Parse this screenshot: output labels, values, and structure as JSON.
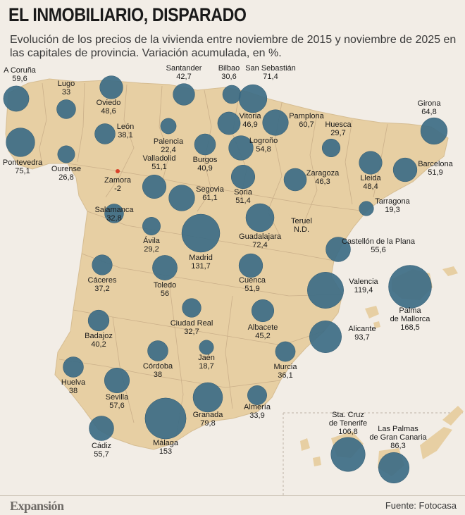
{
  "title": "EL INMOBILIARIO, DISPARADO",
  "subtitle": "Evolución de los precios de la vivienda entre noviembre de 2015 y noviembre de 2025 en las capitales de provincia. Variación acumulada, en %.",
  "colors": {
    "land": "#e7cfa3",
    "border": "#c9ad85",
    "bubble": "#3d6c85",
    "negative": "#d9402a",
    "background": "#f2ede6"
  },
  "cities": [
    {
      "id": "a-coruna",
      "name": "A Coruña",
      "value": "59,6"
    },
    {
      "id": "lugo",
      "name": "Lugo",
      "value": "33"
    },
    {
      "id": "oviedo",
      "name": "Oviedo",
      "value": "48,6"
    },
    {
      "id": "santander",
      "name": "Santander",
      "value": "42,7"
    },
    {
      "id": "bilbao",
      "name": "Bilbao",
      "value": "30,6"
    },
    {
      "id": "san-sebastian",
      "name": "San Sebastián",
      "value": "71,4"
    },
    {
      "id": "girona",
      "name": "Girona",
      "value": "64,8"
    },
    {
      "id": "pontevedra",
      "name": "Pontevedra",
      "value": "75,1"
    },
    {
      "id": "leon",
      "name": "León",
      "value": "38,1"
    },
    {
      "id": "palencia",
      "name": "Palencia",
      "value": "22,4"
    },
    {
      "id": "vitoria",
      "name": "Vitoria",
      "value": "46,9"
    },
    {
      "id": "pamplona",
      "name": "Pamplona",
      "value": "60,7"
    },
    {
      "id": "huesca",
      "name": "Huesca",
      "value": "29,7"
    },
    {
      "id": "ourense",
      "name": "Ourense",
      "value": "26,8"
    },
    {
      "id": "burgos",
      "name": "Burgos",
      "value": "40,9"
    },
    {
      "id": "logrono",
      "name": "Logroño",
      "value": "54,8"
    },
    {
      "id": "lleida",
      "name": "Lleida",
      "value": "48,4"
    },
    {
      "id": "barcelona",
      "name": "Barcelona",
      "value": "51,9"
    },
    {
      "id": "zamora",
      "name": "Zamora",
      "value": "-2"
    },
    {
      "id": "valladolid",
      "name": "Valladolid",
      "value": "51,1"
    },
    {
      "id": "soria",
      "name": "Soria",
      "value": "51,4"
    },
    {
      "id": "zaragoza",
      "name": "Zaragoza",
      "value": "46,3"
    },
    {
      "id": "segovia",
      "name": "Segovia",
      "value": "61,1"
    },
    {
      "id": "tarragona",
      "name": "Tarragona",
      "value": "19,3"
    },
    {
      "id": "salamanca",
      "name": "Salamanca",
      "value": "32,8"
    },
    {
      "id": "avila",
      "name": "Ávila",
      "value": "29,2"
    },
    {
      "id": "guadalajara",
      "name": "Guadalajara",
      "value": "72,4"
    },
    {
      "id": "teruel",
      "name": "Teruel",
      "value": "N.D."
    },
    {
      "id": "madrid",
      "name": "Madrid",
      "value": "131,7"
    },
    {
      "id": "castellon",
      "name": "Castellón de la Plana",
      "value": "55,6"
    },
    {
      "id": "caceres",
      "name": "Cáceres",
      "value": "37,2"
    },
    {
      "id": "toledo",
      "name": "Toledo",
      "value": "56"
    },
    {
      "id": "cuenca",
      "name": "Cuenca",
      "value": "51,9"
    },
    {
      "id": "valencia",
      "name": "Valencia",
      "value": "119,4"
    },
    {
      "id": "palma",
      "name": "Palma\nde Mallorca",
      "value": "168,5"
    },
    {
      "id": "ciudad-real",
      "name": "Ciudad Real",
      "value": "32,7"
    },
    {
      "id": "albacete",
      "name": "Albacete",
      "value": "45,2"
    },
    {
      "id": "badajoz",
      "name": "Badajoz",
      "value": "40,2"
    },
    {
      "id": "alicante",
      "name": "Alicante",
      "value": "93,7"
    },
    {
      "id": "cordoba",
      "name": "Córdoba",
      "value": "38"
    },
    {
      "id": "jaen",
      "name": "Jaén",
      "value": "18,7"
    },
    {
      "id": "murcia",
      "name": "Murcia",
      "value": "36,1"
    },
    {
      "id": "huelva",
      "name": "Huelva",
      "value": "38"
    },
    {
      "id": "sevilla",
      "name": "Sevilla",
      "value": "57,6"
    },
    {
      "id": "granada",
      "name": "Granada",
      "value": "79,8"
    },
    {
      "id": "almeria",
      "name": "Almería",
      "value": "33,9"
    },
    {
      "id": "cadiz",
      "name": "Cádiz",
      "value": "55,7"
    },
    {
      "id": "malaga",
      "name": "Málaga",
      "value": "153"
    },
    {
      "id": "tenerife",
      "name": "Sta. Cruz\nde Tenerife",
      "value": "106,8"
    },
    {
      "id": "las-palmas",
      "name": "Las Palmas\nde Gran Canaria",
      "value": "86,3"
    }
  ],
  "footer": {
    "logo": "Expansión",
    "source": "Fuente: Fotocasa"
  }
}
